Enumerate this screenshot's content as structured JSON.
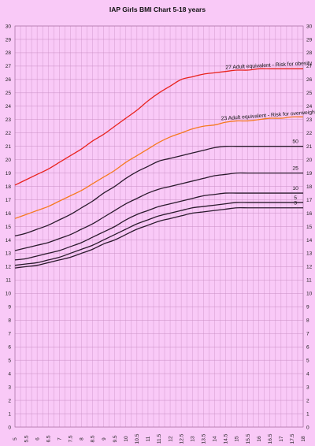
{
  "chart_data": {
    "type": "line",
    "title": "IAP Girls BMI Chart 5-18 years",
    "xlabel": "",
    "ylabel": "",
    "xlim": [
      5,
      18
    ],
    "ylim": [
      0,
      30
    ],
    "grid": true,
    "x_ticks": [
      "5",
      "5.5",
      "6",
      "6.5",
      "7",
      "7.5",
      "8",
      "8.5",
      "9",
      "9.5",
      "10",
      "10.5",
      "11",
      "11.5",
      "12",
      "12.5",
      "13",
      "13.5",
      "14",
      "14.5",
      "15",
      "15.5",
      "16",
      "16.5",
      "17",
      "17.5",
      "18"
    ],
    "y_ticks": [
      "0",
      "1",
      "2",
      "3",
      "4",
      "5",
      "6",
      "7",
      "8",
      "9",
      "10",
      "11",
      "12",
      "13",
      "14",
      "15",
      "16",
      "17",
      "18",
      "19",
      "20",
      "21",
      "22",
      "23",
      "24",
      "25",
      "26",
      "27",
      "28",
      "29",
      "30"
    ],
    "x": [
      5,
      5.5,
      6,
      6.5,
      7,
      7.5,
      8,
      8.5,
      9,
      9.5,
      10,
      10.5,
      11,
      11.5,
      12,
      12.5,
      13,
      13.5,
      14,
      14.5,
      15,
      15.5,
      16,
      16.5,
      17,
      17.5,
      18
    ],
    "series": [
      {
        "name": "27 Adult equivalent -  Risk for obesity",
        "color": "#e8231d",
        "values": [
          18.1,
          18.5,
          18.9,
          19.3,
          19.8,
          20.3,
          20.8,
          21.4,
          21.9,
          22.5,
          23.1,
          23.7,
          24.4,
          25.0,
          25.5,
          26.0,
          26.2,
          26.4,
          26.5,
          26.6,
          26.7,
          26.7,
          26.8,
          26.8,
          26.8,
          26.8,
          26.8
        ]
      },
      {
        "name": "23 Adult equivalent -  Risk for overweight",
        "color": "#f57a1e",
        "values": [
          15.6,
          15.9,
          16.2,
          16.5,
          16.9,
          17.3,
          17.7,
          18.2,
          18.7,
          19.2,
          19.8,
          20.3,
          20.8,
          21.3,
          21.7,
          22.0,
          22.3,
          22.5,
          22.6,
          22.8,
          22.9,
          22.9,
          23.0,
          23.1,
          23.1,
          23.2,
          23.2
        ]
      },
      {
        "name": "50",
        "color": "#2a1a2c",
        "values": [
          14.3,
          14.5,
          14.8,
          15.1,
          15.5,
          15.9,
          16.4,
          16.9,
          17.5,
          18.0,
          18.6,
          19.1,
          19.5,
          19.9,
          20.1,
          20.3,
          20.5,
          20.7,
          20.9,
          21.0,
          21.0,
          21.0,
          21.0,
          21.0,
          21.0,
          21.0,
          21.0
        ]
      },
      {
        "name": "25",
        "color": "#2a1a2c",
        "values": [
          13.2,
          13.4,
          13.6,
          13.8,
          14.1,
          14.4,
          14.8,
          15.2,
          15.7,
          16.2,
          16.7,
          17.1,
          17.5,
          17.8,
          18.0,
          18.2,
          18.4,
          18.6,
          18.8,
          18.9,
          19.0,
          19.0,
          19.0,
          19.0,
          19.0,
          19.0,
          19.0
        ]
      },
      {
        "name": "10",
        "color": "#2a1a2c",
        "values": [
          12.5,
          12.6,
          12.8,
          13.0,
          13.2,
          13.5,
          13.8,
          14.2,
          14.6,
          15.0,
          15.5,
          15.9,
          16.2,
          16.5,
          16.7,
          16.9,
          17.1,
          17.3,
          17.4,
          17.5,
          17.5,
          17.5,
          17.5,
          17.5,
          17.5,
          17.5,
          17.5
        ]
      },
      {
        "name": "5",
        "color": "#2a1a2c",
        "values": [
          12.1,
          12.2,
          12.3,
          12.5,
          12.7,
          13.0,
          13.3,
          13.6,
          14.0,
          14.4,
          14.8,
          15.2,
          15.5,
          15.8,
          16.0,
          16.2,
          16.4,
          16.5,
          16.6,
          16.7,
          16.8,
          16.8,
          16.8,
          16.8,
          16.8,
          16.8,
          16.8
        ]
      },
      {
        "name": "3",
        "color": "#2a1a2c",
        "values": [
          11.9,
          12.0,
          12.1,
          12.3,
          12.5,
          12.7,
          13.0,
          13.3,
          13.7,
          14.0,
          14.4,
          14.8,
          15.1,
          15.4,
          15.6,
          15.8,
          16.0,
          16.1,
          16.2,
          16.3,
          16.4,
          16.4,
          16.4,
          16.4,
          16.4,
          16.4,
          16.4
        ]
      }
    ]
  }
}
